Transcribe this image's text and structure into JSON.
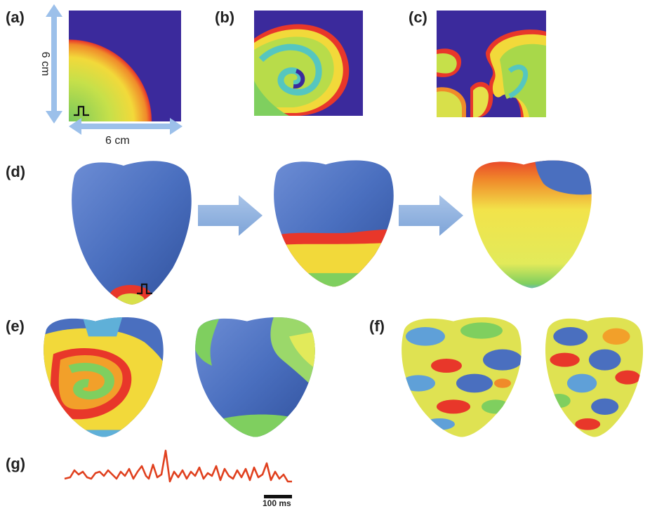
{
  "panels": {
    "a": "(a)",
    "b": "(b)",
    "c": "(c)",
    "d": "(d)",
    "e": "(e)",
    "f": "(f)",
    "g": "(g)"
  },
  "dimensions": {
    "vertical": "6 cm",
    "horizontal": "6 cm"
  },
  "scale_bar": "100 ms",
  "colors": {
    "resting": "#3b2a9c",
    "heart_blue": "#4a6fbf",
    "wave_red": "#e8372a",
    "wave_yellow": "#f2e34a",
    "wave_green": "#7fcf5f",
    "arrow": "#8fb2dd",
    "ecg": "#e0401e"
  },
  "icons": [
    "stimulus-pulse-icon",
    "right-arrow-icon"
  ]
}
